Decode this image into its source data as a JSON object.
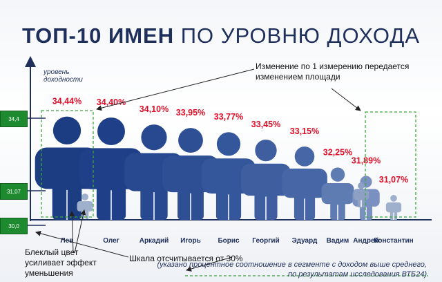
{
  "title": {
    "bold": "ТОП-10 ИМЕН",
    "rest": "ПО УРОВНЮ ДОХОДА"
  },
  "ylabel": [
    "уровень",
    "доходности"
  ],
  "colors": {
    "pct": "#e0102a",
    "dark": "#1c3f86",
    "fill_light": "#9fb0cc",
    "axis": "#1f2f5c",
    "green": "#1e8a2f",
    "dashed": "#3aa83a"
  },
  "scale_boxes": {
    "top": "34,4",
    "mid": "31,07",
    "bottom": "30,0"
  },
  "notes": {
    "change": [
      "Изменение по 1 измерению передается",
      "изменением площади"
    ],
    "faded": [
      "Блеклый цвет",
      "усиливает эффект",
      "уменьшения"
    ],
    "scale": "Шкала отсчитывается от 30%"
  },
  "source": [
    "(указано процентное соотношение в сегменте с доходом выше среднего,",
    "по результатам исследования ВТБ24)"
  ],
  "chart_data": {
    "type": "bar",
    "title": "ТОП-10 ИМЕН ПО УРОВНЮ ДОХОДА",
    "ylabel": "уровень доходности",
    "categories": [
      "Лев",
      "Олег",
      "Аркадий",
      "Игорь",
      "Борис",
      "Георгий",
      "Эдуард",
      "Вадим",
      "Андрей",
      "Константин"
    ],
    "values": [
      34.44,
      34.4,
      34.1,
      33.95,
      33.77,
      33.45,
      33.15,
      32.25,
      31.89,
      31.07
    ],
    "labels": [
      "34,44%",
      "34,40%",
      "34,10%",
      "33,95%",
      "33,77%",
      "33,45%",
      "33,15%",
      "32,25%",
      "31,89%",
      "31,07%"
    ],
    "ylim": [
      30.0,
      34.4
    ]
  }
}
